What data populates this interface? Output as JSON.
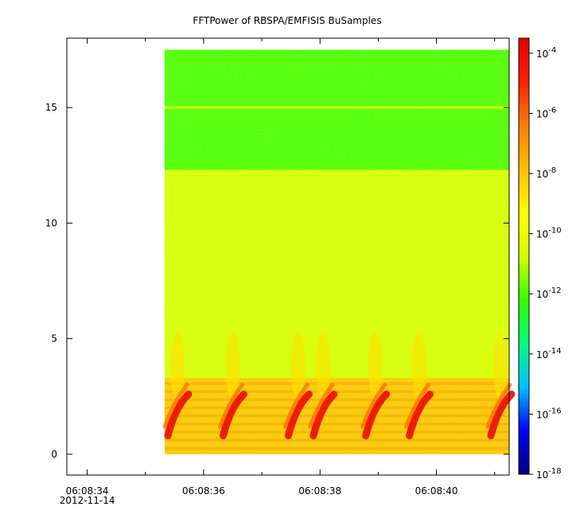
{
  "chart_data": {
    "type": "heatmap",
    "title": "FFTPower of RBSPA/EMFISIS  BuSamples",
    "xlabel": "",
    "ylabel": "",
    "x_ticks": [
      {
        "value": 34,
        "label": "06:08:34",
        "sublabel": "2012-11-14"
      },
      {
        "value": 36,
        "label": "06:08:36"
      },
      {
        "value": 38,
        "label": "06:08:38"
      },
      {
        "value": 40,
        "label": "06:08:40"
      }
    ],
    "x_minor_ticks": [
      35,
      37,
      39,
      41
    ],
    "xlim": [
      33.65,
      41.25
    ],
    "y_ticks": [
      {
        "value": 0,
        "label": "0"
      },
      {
        "value": 5,
        "label": "5"
      },
      {
        "value": 10,
        "label": "10"
      },
      {
        "value": 15,
        "label": "15"
      }
    ],
    "ylim": [
      -0.9,
      18.0
    ],
    "data_extent": {
      "x": [
        35.33,
        41.25
      ],
      "y": [
        0,
        17.5
      ]
    },
    "colorbar": {
      "scale": "log",
      "range_exponent": [
        -18,
        -3.5
      ],
      "ticks": [
        {
          "exponent": -4,
          "base": "10",
          "exp": "-4"
        },
        {
          "exponent": -6,
          "base": "10",
          "exp": "-6"
        },
        {
          "exponent": -8,
          "base": "10",
          "exp": "-8"
        },
        {
          "exponent": -10,
          "base": "10",
          "exp": "-10"
        },
        {
          "exponent": -12,
          "base": "10",
          "exp": "-12"
        },
        {
          "exponent": -14,
          "base": "10",
          "exp": "-14"
        },
        {
          "exponent": -16,
          "base": "10",
          "exp": "-16"
        },
        {
          "exponent": -18,
          "base": "10",
          "exp": "-18"
        }
      ],
      "colors": [
        "#00007f",
        "#0000ff",
        "#00bfff",
        "#00ff7f",
        "#33ff00",
        "#d4ff00",
        "#ffff00",
        "#ffc000",
        "#ff7f00",
        "#ff2000",
        "#e00000"
      ]
    },
    "regions": [
      {
        "name": "background noise above 12.3",
        "y": [
          12.3,
          17.5
        ],
        "level_exponent": -12
      },
      {
        "name": "narrow line at 15.0",
        "y": [
          14.95,
          15.05
        ],
        "level_exponent": -10.5
      },
      {
        "name": "background 3.3 to 12.3",
        "y": [
          3.3,
          12.3
        ],
        "level_exponent": -10.5
      },
      {
        "name": "low-frequency band",
        "y": [
          0,
          3.3
        ],
        "level_exponent": -8
      }
    ],
    "bursts_center_x": [
      35.55,
      36.5,
      37.62,
      38.05,
      38.95,
      39.7,
      41.1
    ],
    "bursts_peak_exponent": -4
  }
}
